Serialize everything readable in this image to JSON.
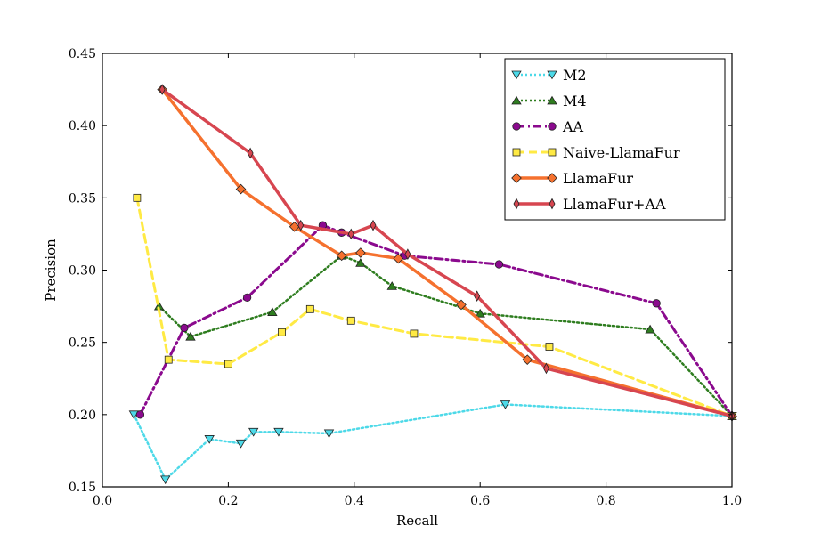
{
  "chart_data": {
    "type": "line",
    "title": "",
    "xlabel": "Recall",
    "ylabel": "Precision",
    "xlim": [
      0.0,
      1.0
    ],
    "ylim": [
      0.15,
      0.45
    ],
    "xticks": [
      "0.0",
      "0.2",
      "0.4",
      "0.6",
      "0.8",
      "1.0"
    ],
    "yticks": [
      "0.15",
      "0.20",
      "0.25",
      "0.30",
      "0.35",
      "0.40",
      "0.45"
    ],
    "grid": false,
    "legend_position": "top-right",
    "series": [
      {
        "name": "M2",
        "color": "#4dd9e8",
        "marker": "triangle-down",
        "dash": "dotted",
        "x": [
          0.05,
          0.1,
          0.17,
          0.22,
          0.24,
          0.28,
          0.36,
          0.64,
          1.0
        ],
        "y": [
          0.2,
          0.155,
          0.183,
          0.18,
          0.188,
          0.188,
          0.187,
          0.207,
          0.199
        ]
      },
      {
        "name": "M4",
        "color": "#2e7d1f",
        "marker": "triangle-up",
        "dash": "dotted",
        "x": [
          0.09,
          0.14,
          0.27,
          0.38,
          0.41,
          0.46,
          0.6,
          0.87,
          1.0
        ],
        "y": [
          0.275,
          0.254,
          0.271,
          0.31,
          0.305,
          0.289,
          0.27,
          0.259,
          0.199
        ]
      },
      {
        "name": "AA",
        "color": "#8b0a8e",
        "marker": "circle",
        "dash": "dashdot",
        "x": [
          0.06,
          0.13,
          0.23,
          0.35,
          0.38,
          0.48,
          0.63,
          0.88,
          1.0
        ],
        "y": [
          0.2,
          0.26,
          0.281,
          0.331,
          0.326,
          0.31,
          0.304,
          0.277,
          0.199
        ]
      },
      {
        "name": "Naive-LlamaFur",
        "color": "#ffea44",
        "marker": "square",
        "dash": "dashed",
        "x": [
          0.055,
          0.105,
          0.2,
          0.285,
          0.33,
          0.395,
          0.495,
          0.71,
          1.0
        ],
        "y": [
          0.35,
          0.238,
          0.235,
          0.257,
          0.273,
          0.265,
          0.256,
          0.247,
          0.199
        ]
      },
      {
        "name": "LlamaFur",
        "color": "#f5712e",
        "marker": "diamond",
        "dash": "solid",
        "x": [
          0.095,
          0.22,
          0.305,
          0.38,
          0.41,
          0.47,
          0.57,
          0.675,
          1.0
        ],
        "y": [
          0.425,
          0.356,
          0.33,
          0.31,
          0.312,
          0.308,
          0.276,
          0.238,
          0.199
        ]
      },
      {
        "name": "LlamaFur+AA",
        "color": "#d74650",
        "marker": "thin-diamond",
        "dash": "solid",
        "x": [
          0.095,
          0.235,
          0.315,
          0.395,
          0.43,
          0.485,
          0.595,
          0.705,
          1.0
        ],
        "y": [
          0.425,
          0.381,
          0.331,
          0.325,
          0.331,
          0.311,
          0.282,
          0.232,
          0.199
        ]
      }
    ]
  }
}
